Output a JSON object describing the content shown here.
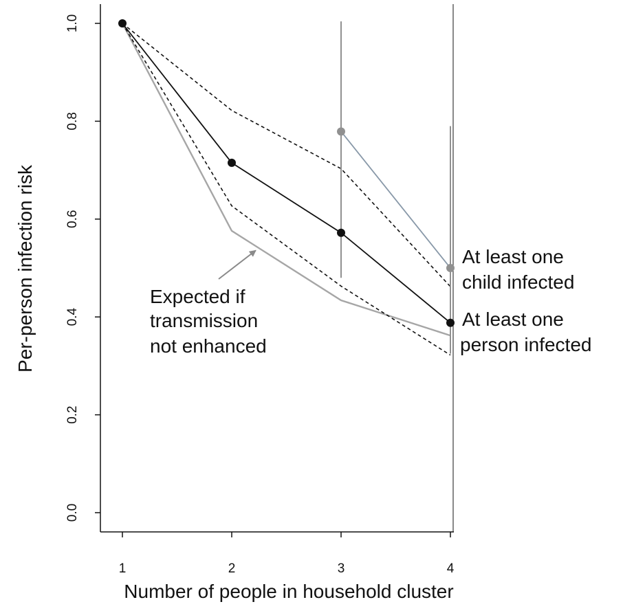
{
  "chart_data": {
    "type": "line",
    "xlabel": "Number of people in household cluster",
    "ylabel": "Per-person infection risk",
    "xlim": [
      1,
      4
    ],
    "ylim": [
      0,
      1
    ],
    "x_ticks": [
      "1",
      "2",
      "3",
      "4"
    ],
    "y_ticks": [
      "0.0",
      "0.2",
      "0.4",
      "0.6",
      "0.8",
      "1.0"
    ],
    "grid": false,
    "series": [
      {
        "id": "person",
        "name": "At least one person infected",
        "x": [
          1,
          2,
          3,
          4
        ],
        "y": [
          1.0,
          0.715,
          0.572,
          0.388
        ],
        "color": "#111111",
        "markers": true
      },
      {
        "id": "upper_ci",
        "x": [
          1,
          2,
          3,
          4
        ],
        "y": [
          1.0,
          0.822,
          0.703,
          0.462
        ],
        "color": "#111111",
        "dash": true
      },
      {
        "id": "lower_ci",
        "x": [
          1,
          2,
          3,
          4
        ],
        "y": [
          1.0,
          0.627,
          0.463,
          0.322
        ],
        "color": "#111111",
        "dash": true
      },
      {
        "id": "expected",
        "name": "Expected if transmission not enhanced",
        "x": [
          1,
          2,
          3,
          4
        ],
        "y": [
          1.0,
          0.576,
          0.434,
          0.362
        ],
        "color": "#a6a6a6"
      },
      {
        "id": "child",
        "name": "At least one child infected",
        "x": [
          3,
          4
        ],
        "y": [
          0.779,
          0.5
        ],
        "color": "#8898a8",
        "marker_color": "#909090",
        "markers": true,
        "error_bars": [
          {
            "x": 3,
            "low": 0.48,
            "high": 1.004
          },
          {
            "x": 4,
            "low": 0.325,
            "high": 0.79
          }
        ]
      }
    ],
    "annotations": [
      {
        "lines": [
          "Expected if",
          "transmission",
          "not enhanced"
        ],
        "arrow_to": [
          2.22,
          0.536
        ]
      },
      {
        "lines": [
          "At least one",
          "child infected"
        ]
      },
      {
        "lines": [
          "At least one",
          "person infected"
        ]
      }
    ]
  }
}
